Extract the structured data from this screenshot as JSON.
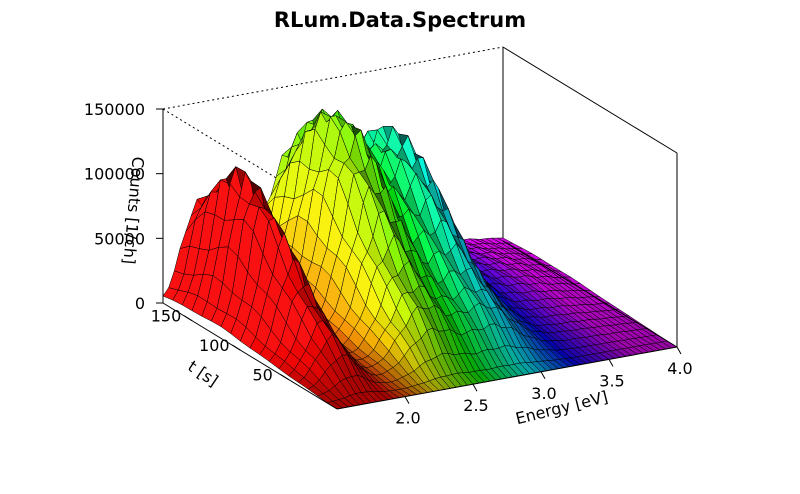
{
  "chart_data": {
    "type": "surface3d",
    "title": "RLum.Data.Spectrum",
    "xlabel": "Energy [eV]",
    "ylabel": "t [s]",
    "zlabel": "Counts [1/ch]",
    "x_ticks": [
      "2.0",
      "2.5",
      "3.0",
      "3.5",
      "4.0"
    ],
    "y_ticks": [
      "50",
      "100",
      "150"
    ],
    "z_ticks": [
      "0",
      "50000",
      "100000",
      "150000"
    ],
    "xlim": [
      1.5,
      4.0
    ],
    "ylim": [
      0,
      180
    ],
    "zlim": [
      0,
      150000
    ],
    "color_scheme": "rainbow (red→yellow→green→blue→violet by energy)",
    "peaks": [
      {
        "energy": 1.75,
        "max_counts": 122000
      },
      {
        "energy": 2.4,
        "max_counts": 150000
      },
      {
        "energy": 2.85,
        "max_counts": 128000
      }
    ]
  }
}
